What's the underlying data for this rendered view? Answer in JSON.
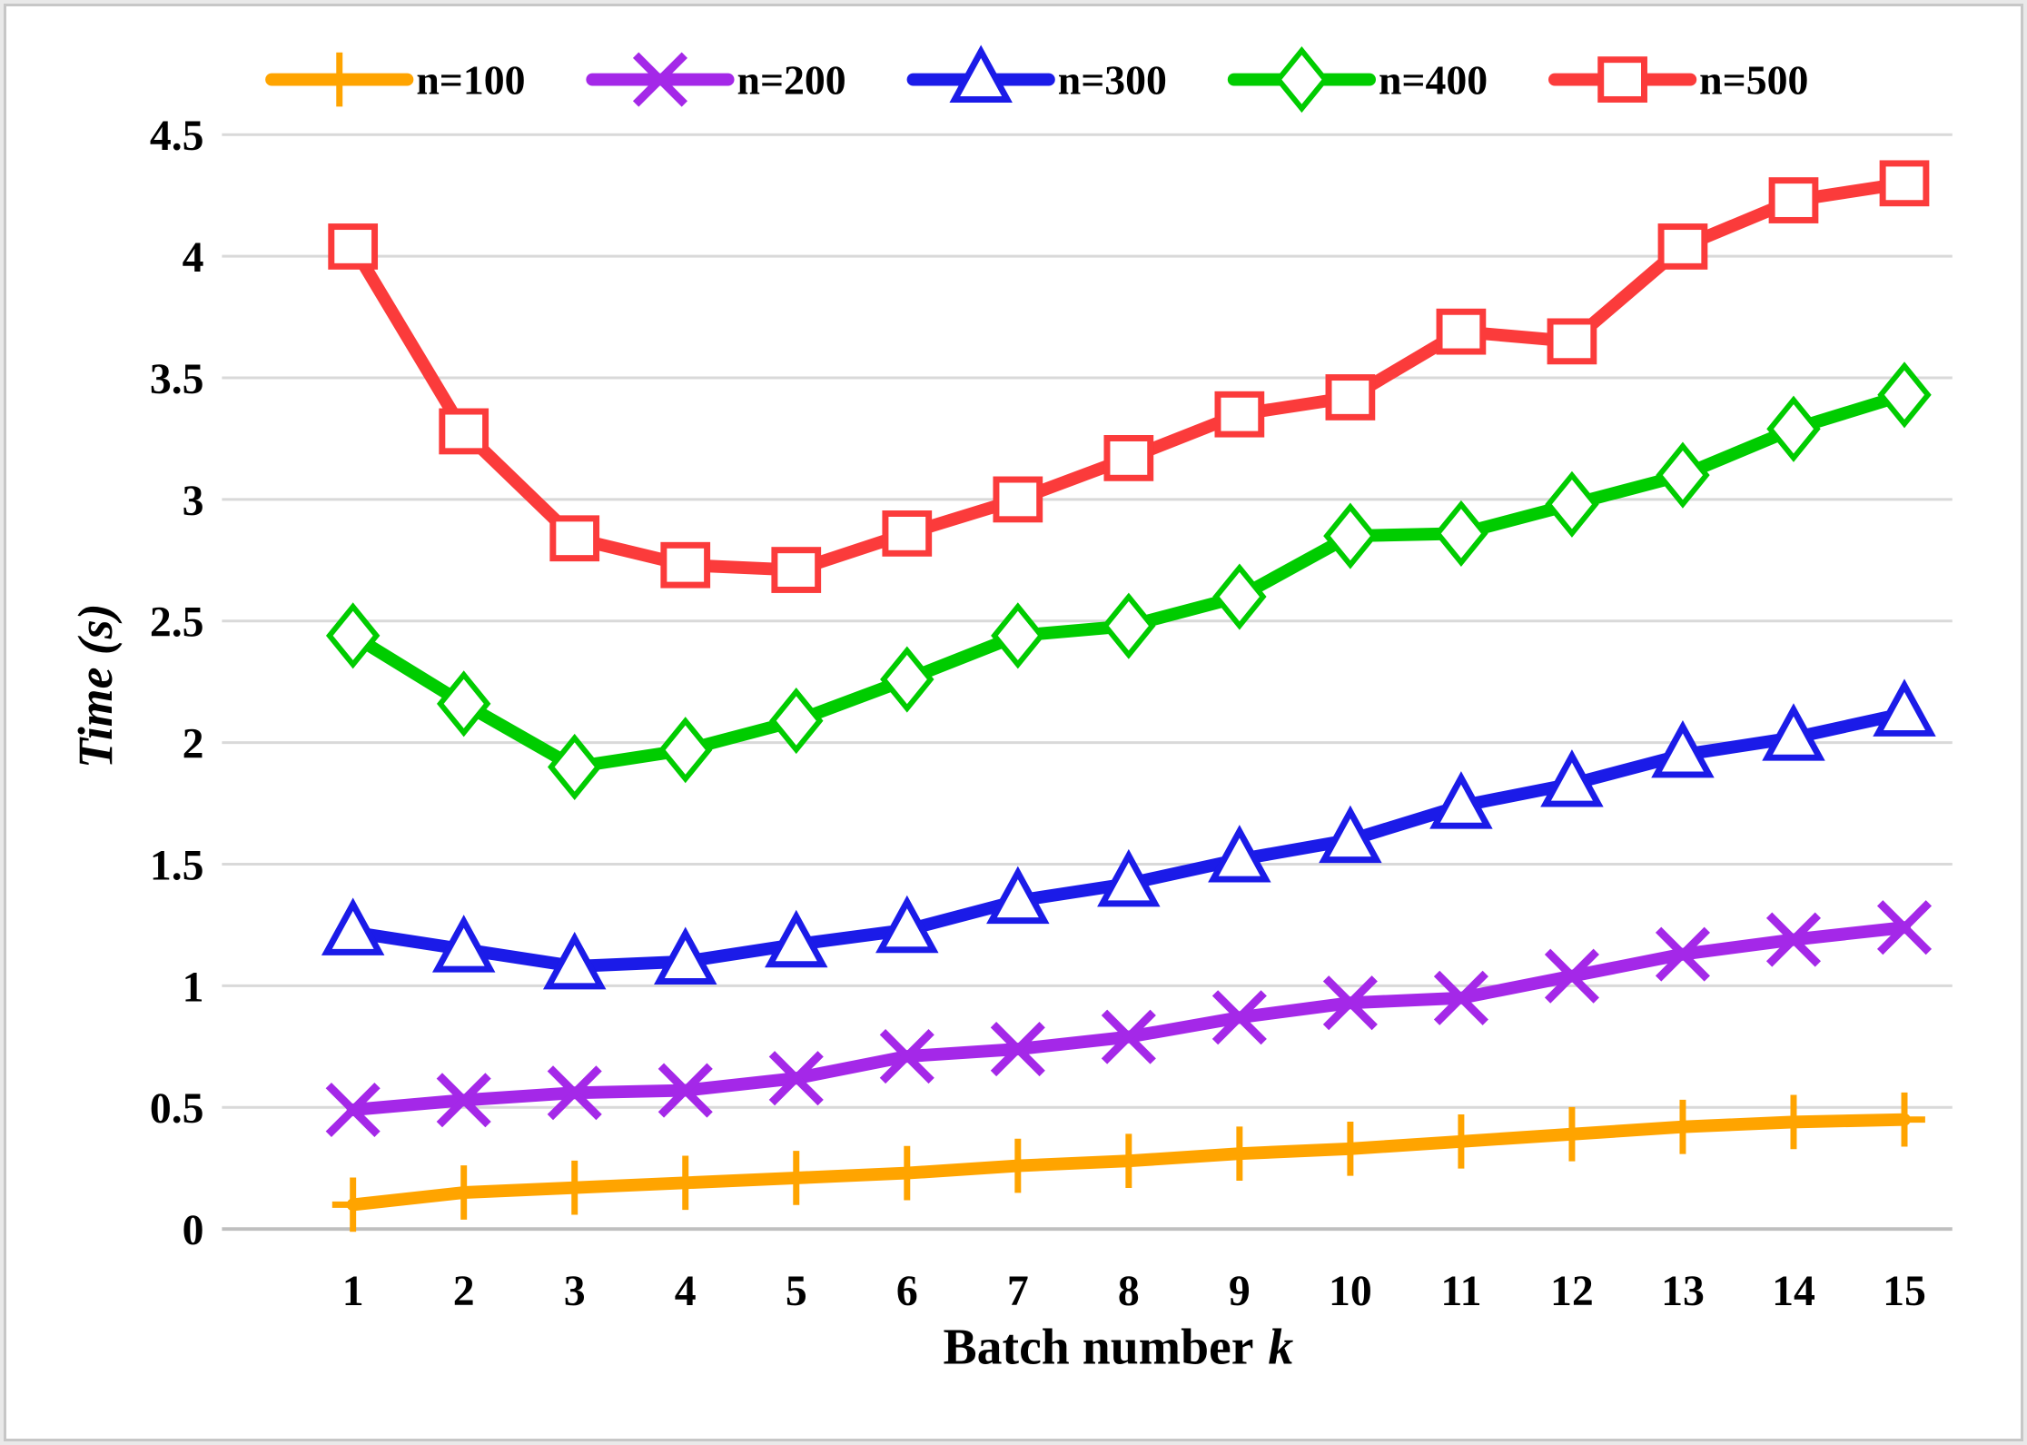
{
  "chart_data": {
    "type": "line",
    "title": "",
    "xlabel": "Batch number",
    "xlabel_var": "k",
    "ylabel": "Time (s)",
    "x": [
      1,
      2,
      3,
      4,
      5,
      6,
      7,
      8,
      9,
      10,
      11,
      12,
      13,
      14,
      15
    ],
    "x_tick_labels": [
      "1",
      "2",
      "3",
      "4",
      "5",
      "6",
      "7",
      "8",
      "9",
      "10",
      "11",
      "12",
      "13",
      "14",
      "15"
    ],
    "y_ticks": [
      0,
      0.5,
      1,
      1.5,
      2,
      2.5,
      3,
      3.5,
      4,
      4.5
    ],
    "y_tick_labels": [
      "0",
      "0.5",
      "1",
      "1.5",
      "2",
      "2.5",
      "3",
      "3.5",
      "4",
      "4.5"
    ],
    "ylim": [
      0,
      4.5
    ],
    "grid": "horizontal",
    "legend_position": "top",
    "colors": {
      "gridline": "#D9D9D9",
      "axis_line": "#BFBFBF",
      "text": "#000000"
    },
    "series": [
      {
        "name": "n=100",
        "color": "#FFA400",
        "marker": "plus-marker",
        "values": [
          0.1,
          0.15,
          0.17,
          0.19,
          0.21,
          0.23,
          0.26,
          0.28,
          0.31,
          0.33,
          0.36,
          0.39,
          0.42,
          0.44,
          0.45
        ]
      },
      {
        "name": "n=200",
        "color": "#A428E8",
        "marker": "x-marker",
        "values": [
          0.49,
          0.53,
          0.56,
          0.57,
          0.62,
          0.71,
          0.74,
          0.79,
          0.87,
          0.93,
          0.95,
          1.04,
          1.13,
          1.19,
          1.24
        ]
      },
      {
        "name": "n=300",
        "color": "#1B1BE8",
        "marker": "triangle-marker",
        "values": [
          1.22,
          1.15,
          1.08,
          1.1,
          1.17,
          1.23,
          1.35,
          1.42,
          1.52,
          1.6,
          1.74,
          1.83,
          1.95,
          2.02,
          2.12
        ]
      },
      {
        "name": "n=400",
        "color": "#00CC00",
        "marker": "diamond-marker",
        "values": [
          2.44,
          2.16,
          1.9,
          1.97,
          2.09,
          2.26,
          2.44,
          2.48,
          2.6,
          2.85,
          2.86,
          2.98,
          3.1,
          3.29,
          3.43
        ]
      },
      {
        "name": "n=500",
        "color": "#FB3B3B",
        "marker": "square-marker",
        "values": [
          4.04,
          3.28,
          2.84,
          2.73,
          2.71,
          2.86,
          3.0,
          3.17,
          3.35,
          3.42,
          3.69,
          3.65,
          4.04,
          4.23,
          4.3
        ]
      }
    ]
  }
}
